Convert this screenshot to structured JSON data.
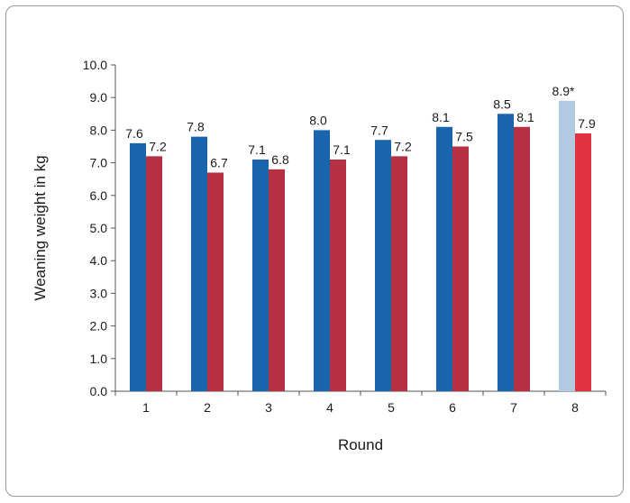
{
  "chart_data": {
    "type": "bar",
    "xlabel": "Round",
    "ylabel": "Weaning weight in kg",
    "ylim": [
      0,
      10
    ],
    "yticks": [
      "0.0",
      "1.0",
      "2.0",
      "3.0",
      "4.0",
      "5.0",
      "6.0",
      "7.0",
      "8.0",
      "9.0",
      "10.0"
    ],
    "categories": [
      "1",
      "2",
      "3",
      "4",
      "5",
      "6",
      "7",
      "8"
    ],
    "series": [
      {
        "values": [
          7.6,
          7.8,
          7.1,
          8.0,
          7.7,
          8.1,
          8.5,
          8.9
        ],
        "labels": [
          "7.6",
          "7.8",
          "7.1",
          "8.0",
          "7.7",
          "8.1",
          "8.5",
          "8.9*"
        ],
        "color": "#1a63ad",
        "highlight_color": "#b3cae3"
      },
      {
        "values": [
          7.2,
          6.7,
          6.8,
          7.1,
          7.2,
          7.5,
          8.1,
          7.9
        ],
        "labels": [
          "7.2",
          "6.7",
          "6.8",
          "7.1",
          "7.2",
          "7.5",
          "8.1",
          "7.9"
        ],
        "color": "#b63044",
        "highlight_color": "#e03240"
      }
    ],
    "highlight_category": "8",
    "grid": false,
    "legend": "none"
  }
}
